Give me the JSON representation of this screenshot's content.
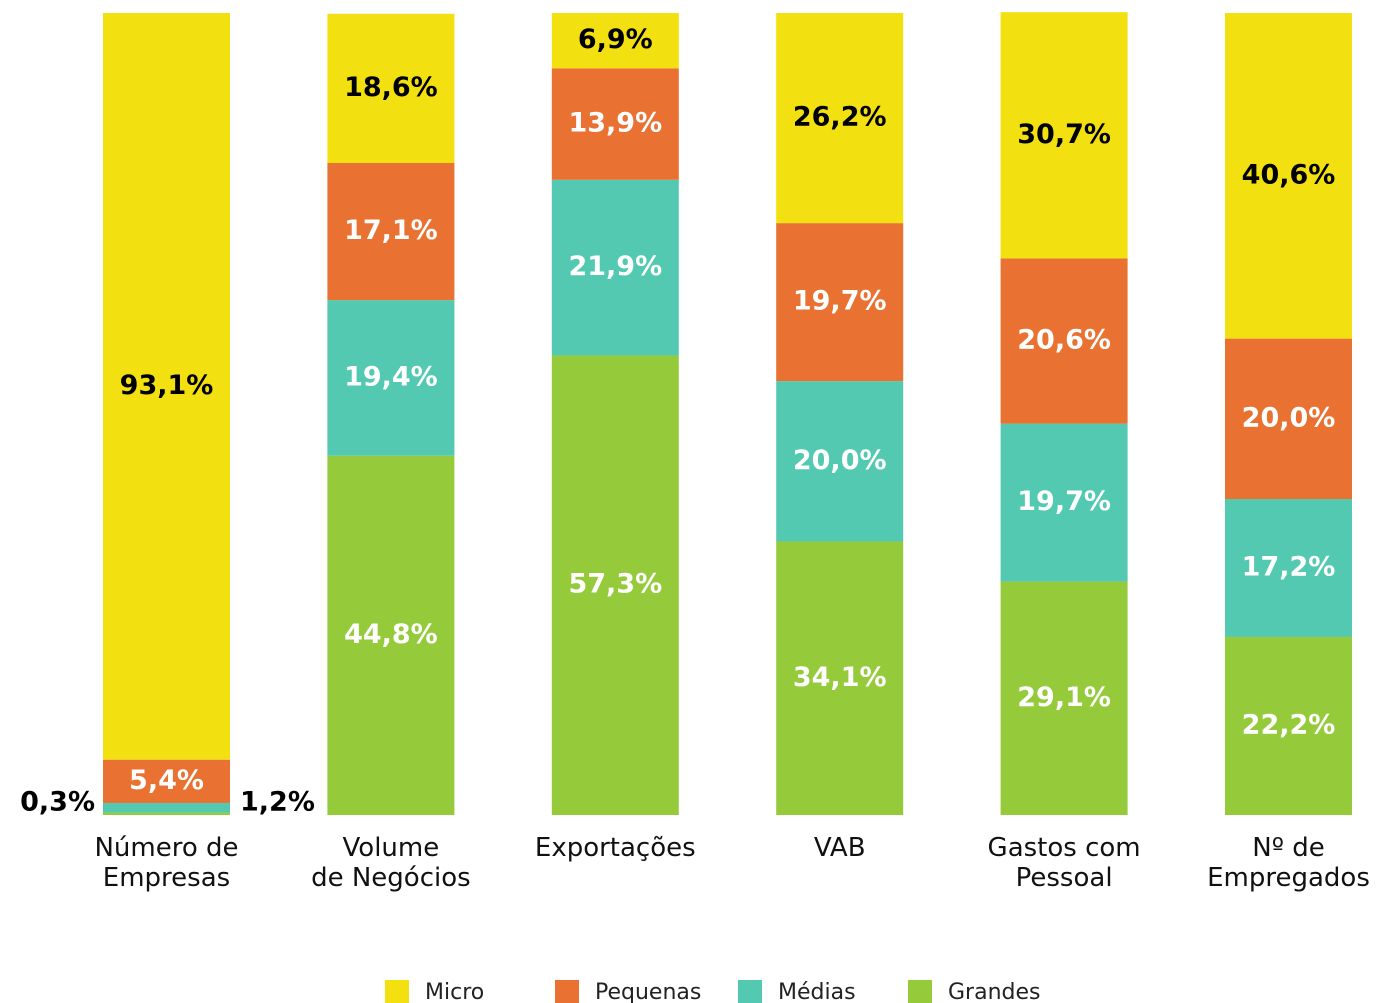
{
  "chart_data": {
    "type": "stacked_bar",
    "categories": [
      "Número de\nEmpresas",
      "Volume\nde Negócios",
      "Exportações",
      "VAB",
      "Gastos com\nPessoal",
      "Nº de\nEmpregados"
    ],
    "ylim": [
      0,
      100
    ],
    "series": [
      {
        "name": "Grandes",
        "color": "#95cb3a",
        "values": [
          0.3,
          44.8,
          57.3,
          34.1,
          29.1,
          22.2
        ],
        "value_labels": [
          "0,3%",
          "44,8%",
          "57,3%",
          "34,1%",
          "29,1%",
          "22,2%"
        ]
      },
      {
        "name": "Médias",
        "color": "#52c9b0",
        "values": [
          1.2,
          19.4,
          21.9,
          20.0,
          19.7,
          17.2
        ],
        "value_labels": [
          "1,2%",
          "19,4%",
          "21,9%",
          "20,0%",
          "19,7%",
          "17,2%"
        ]
      },
      {
        "name": "Pequenas",
        "color": "#e97132",
        "values": [
          5.4,
          17.1,
          13.9,
          19.7,
          20.6,
          20.0
        ],
        "value_labels": [
          "5,4%",
          "17,1%",
          "13,9%",
          "19,7%",
          "20,6%",
          "20,0%"
        ]
      },
      {
        "name": "Micro",
        "color": "#f2e010",
        "values": [
          93.1,
          18.6,
          6.9,
          26.2,
          30.7,
          40.6
        ],
        "value_labels": [
          "93,1%",
          "18,6%",
          "6,9%",
          "26,2%",
          "30,7%",
          "40,6%"
        ]
      }
    ]
  }
}
